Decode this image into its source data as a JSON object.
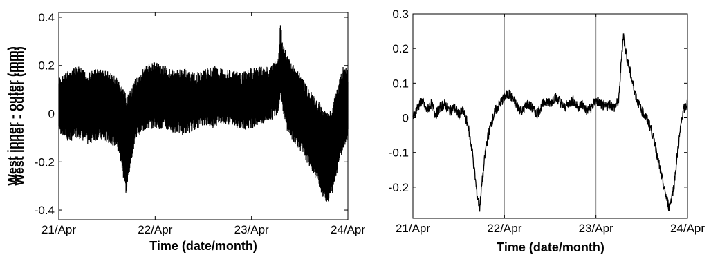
{
  "chart_data": [
    {
      "type": "line",
      "xlabel": "Time (date/month)",
      "ylabel": "West inner - outer (mm)",
      "x_ticks": [
        "21/Apr",
        "22/Apr",
        "23/Apr",
        "24/Apr"
      ],
      "x_range_days": [
        0,
        3
      ],
      "y_ticks": [
        "-0.4",
        "-0.2",
        "0",
        "0.2",
        "0.4"
      ],
      "ylim": [
        -0.44,
        0.42
      ],
      "grid": false,
      "series": [
        {
          "color": "#000000",
          "style": "dense high-frequency band",
          "x": [
            0,
            0.1,
            0.2,
            0.3,
            0.4,
            0.5,
            0.6,
            0.65,
            0.7,
            0.75,
            0.8,
            0.9,
            1.0,
            1.1,
            1.2,
            1.3,
            1.4,
            1.5,
            1.6,
            1.7,
            1.8,
            1.9,
            2.0,
            2.1,
            2.2,
            2.28,
            2.3,
            2.32,
            2.35,
            2.4,
            2.5,
            2.6,
            2.7,
            2.75,
            2.8,
            2.85,
            2.9,
            2.95,
            3.0
          ],
          "upper": [
            0.15,
            0.18,
            0.2,
            0.17,
            0.19,
            0.18,
            0.15,
            0.12,
            0.08,
            0.1,
            0.15,
            0.2,
            0.22,
            0.2,
            0.18,
            0.19,
            0.17,
            0.18,
            0.2,
            0.19,
            0.18,
            0.17,
            0.19,
            0.2,
            0.2,
            0.24,
            0.38,
            0.32,
            0.27,
            0.22,
            0.17,
            0.1,
            0.05,
            0.02,
            0.0,
            0.05,
            0.12,
            0.2,
            0.18
          ],
          "lower": [
            -0.08,
            -0.12,
            -0.1,
            -0.13,
            -0.11,
            -0.12,
            -0.14,
            -0.22,
            -0.34,
            -0.2,
            -0.1,
            -0.07,
            -0.06,
            -0.07,
            -0.08,
            -0.09,
            -0.07,
            -0.05,
            -0.06,
            -0.04,
            -0.05,
            -0.07,
            -0.06,
            -0.05,
            -0.03,
            0.0,
            0.08,
            0.02,
            -0.05,
            -0.1,
            -0.15,
            -0.22,
            -0.3,
            -0.36,
            -0.37,
            -0.32,
            -0.22,
            -0.15,
            -0.1
          ]
        }
      ]
    },
    {
      "type": "line",
      "xlabel": "Time (date/month)",
      "ylabel": "West inner - outer (mm)",
      "x_ticks": [
        "21/Apr",
        "22/Apr",
        "23/Apr",
        "24/Apr"
      ],
      "x_range_days": [
        0,
        3
      ],
      "y_ticks": [
        "-0.2",
        "-0.1",
        "0",
        "0.1",
        "0.2",
        "0.3"
      ],
      "ylim": [
        -0.29,
        0.3
      ],
      "grid": false,
      "vertical_lines_days": [
        1,
        2
      ],
      "series": [
        {
          "color": "#000000",
          "style": "line with fine noise",
          "x": [
            0,
            0.05,
            0.1,
            0.15,
            0.2,
            0.25,
            0.3,
            0.35,
            0.4,
            0.45,
            0.5,
            0.55,
            0.6,
            0.65,
            0.7,
            0.73,
            0.75,
            0.8,
            0.85,
            0.9,
            0.95,
            1.0,
            1.05,
            1.1,
            1.15,
            1.2,
            1.25,
            1.3,
            1.35,
            1.4,
            1.45,
            1.5,
            1.55,
            1.6,
            1.65,
            1.7,
            1.75,
            1.8,
            1.85,
            1.9,
            1.95,
            2.0,
            2.05,
            2.1,
            2.15,
            2.2,
            2.25,
            2.28,
            2.3,
            2.32,
            2.35,
            2.4,
            2.45,
            2.5,
            2.55,
            2.6,
            2.65,
            2.7,
            2.75,
            2.8,
            2.85,
            2.9,
            2.95,
            3.0
          ],
          "y": [
            0.0,
            0.03,
            0.05,
            0.02,
            0.04,
            0.01,
            0.03,
            0.04,
            0.02,
            0.03,
            0.01,
            0.02,
            -0.02,
            -0.1,
            -0.22,
            -0.26,
            -0.2,
            -0.08,
            -0.02,
            0.02,
            0.04,
            0.06,
            0.07,
            0.05,
            0.03,
            0.02,
            0.04,
            0.03,
            0.01,
            0.03,
            0.05,
            0.04,
            0.06,
            0.05,
            0.03,
            0.04,
            0.05,
            0.03,
            0.04,
            0.02,
            0.03,
            0.05,
            0.04,
            0.03,
            0.04,
            0.03,
            0.05,
            0.18,
            0.24,
            0.2,
            0.16,
            0.1,
            0.05,
            0.02,
            0.0,
            -0.03,
            -0.08,
            -0.15,
            -0.21,
            -0.26,
            -0.2,
            -0.08,
            0.02,
            0.04
          ]
        }
      ]
    }
  ]
}
